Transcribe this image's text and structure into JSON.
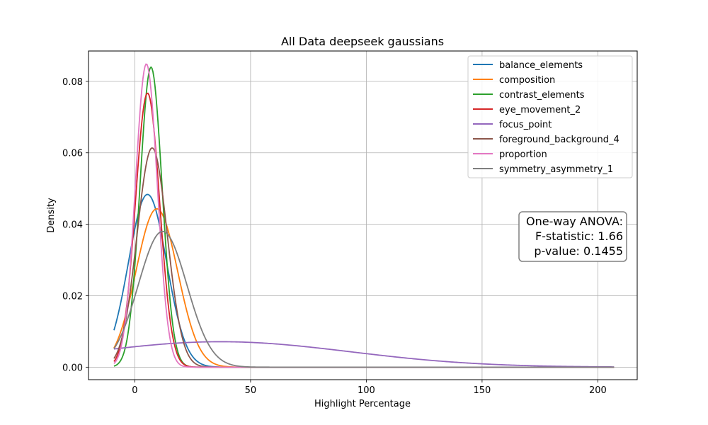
{
  "chart_data": {
    "type": "line",
    "title": "All Data deepseek gaussians",
    "xlabel": "Highlight Percentage",
    "ylabel": "Density",
    "xlim": [
      -20,
      217
    ],
    "ylim": [
      -0.0035,
      0.0885
    ],
    "x_range": [
      -9,
      207
    ],
    "xticks": [
      0,
      50,
      100,
      150,
      200
    ],
    "yticks": [
      0.0,
      0.02,
      0.04,
      0.06,
      0.08
    ],
    "ytick_labels": [
      "0.00",
      "0.02",
      "0.04",
      "0.06",
      "0.08"
    ],
    "grid": true,
    "legend_position": "top-right",
    "series": [
      {
        "name": "balance_elements",
        "color": "#1f77b4",
        "mean": 5.5,
        "std": 8.25
      },
      {
        "name": "composition",
        "color": "#ff7f0e",
        "mean": 9.5,
        "std": 9.0
      },
      {
        "name": "contrast_elements",
        "color": "#2ca02c",
        "mean": 7.0,
        "std": 4.75
      },
      {
        "name": "eye_movement_2",
        "color": "#d62728",
        "mean": 5.5,
        "std": 5.2
      },
      {
        "name": "focus_point",
        "color": "#9467bd",
        "mean": 37.0,
        "std": 56.0
      },
      {
        "name": "foreground_background_4",
        "color": "#8c564b",
        "mean": 7.5,
        "std": 6.5
      },
      {
        "name": "proportion",
        "color": "#e377c2",
        "mean": 5.0,
        "std": 4.7
      },
      {
        "name": "symmetry_asymmetry_1",
        "color": "#7f7f7f",
        "mean": 12.0,
        "std": 10.5
      }
    ],
    "annotation": {
      "line1": "One-way ANOVA:",
      "line2": "F-statistic: 1.66",
      "line3": "p-value: 0.1455"
    }
  }
}
